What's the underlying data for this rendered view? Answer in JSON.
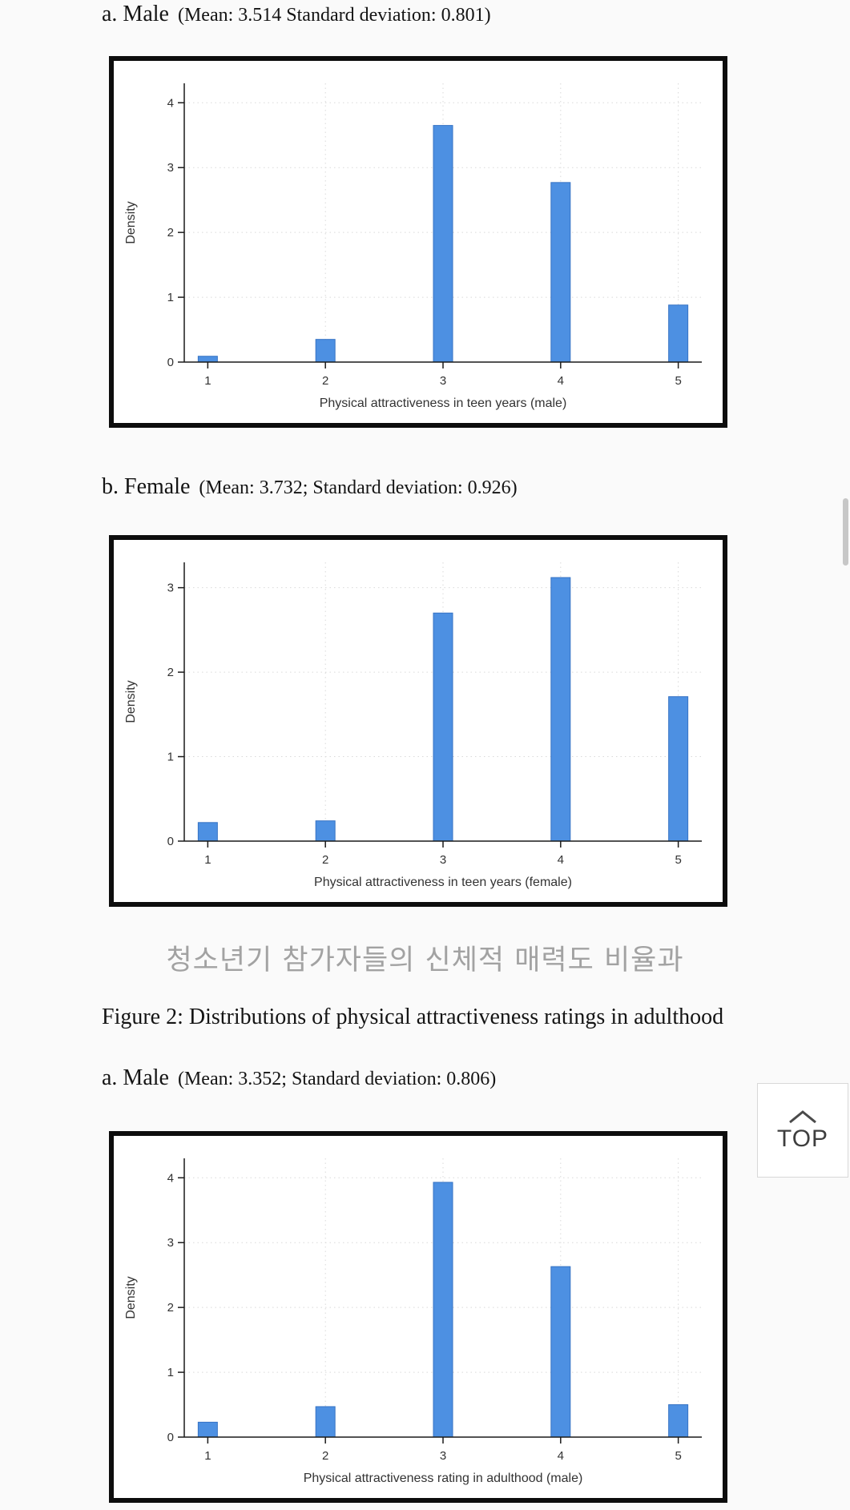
{
  "colors": {
    "bar": "#4d90e2",
    "bar_border": "#3673c4",
    "grid": "#d9d9d9",
    "axis": "#1a1a1a",
    "text": "#333333",
    "korean_text": "#a2a2a2",
    "chart_border": "#0d0d0d",
    "background": "#fafafa"
  },
  "headings": {
    "fig1a": {
      "label": "a. Male",
      "stats": "(Mean: 3.514 Standard deviation: 0.801)"
    },
    "fig1b": {
      "label": "b. Female",
      "stats": "(Mean: 3.732; Standard deviation: 0.926)"
    },
    "fig2a": {
      "label": "a. Male",
      "stats": "(Mean: 3.352; Standard deviation: 0.806)"
    }
  },
  "korean_caption": "청소년기 참가자들의 신체적 매력도 비율과",
  "figure2_caption": "Figure 2: Distributions of physical attractiveness ratings in adulthood",
  "top_button": {
    "label": "TOP",
    "icon": "chevron-up"
  },
  "chart_data": [
    {
      "type": "bar",
      "panel": "a. Male (teen years)",
      "categories": [
        1,
        2,
        3,
        4,
        5
      ],
      "values": [
        0.09,
        0.35,
        3.65,
        2.77,
        0.88
      ],
      "xlabel": "Physical attractiveness in teen years (male)",
      "ylabel": "Density",
      "yticks": [
        0,
        1,
        2,
        3,
        4
      ],
      "ylim": [
        0,
        4.3
      ],
      "xlim": [
        0.8,
        5.2
      ],
      "grid": "dotted",
      "legend": "none"
    },
    {
      "type": "bar",
      "panel": "b. Female (teen years)",
      "categories": [
        1,
        2,
        3,
        4,
        5
      ],
      "values": [
        0.22,
        0.24,
        2.7,
        3.12,
        1.71
      ],
      "xlabel": "Physical attractiveness in teen years (female)",
      "ylabel": "Density",
      "yticks": [
        0,
        1,
        2,
        3
      ],
      "ylim": [
        0,
        3.3
      ],
      "xlim": [
        0.8,
        5.2
      ],
      "grid": "dotted",
      "legend": "none"
    },
    {
      "type": "bar",
      "panel": "a. Male (adulthood)",
      "categories": [
        1,
        2,
        3,
        4,
        5
      ],
      "values": [
        0.23,
        0.47,
        3.93,
        2.63,
        0.5
      ],
      "xlabel": "Physical attractiveness rating in adulthood (male)",
      "ylabel": "Density",
      "yticks": [
        0,
        1,
        2,
        3,
        4
      ],
      "ylim": [
        0,
        4.3
      ],
      "xlim": [
        0.8,
        5.2
      ],
      "grid": "dotted",
      "legend": "none"
    }
  ]
}
